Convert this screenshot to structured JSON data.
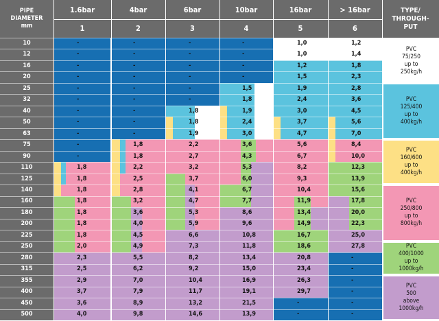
{
  "header": {
    "diameter": [
      "PIPE",
      "DIAMETER",
      "mm"
    ],
    "pressures": [
      "1.6bar",
      "4bar",
      "6bar",
      "10bar",
      "16bar",
      "> 16bar"
    ],
    "numbers": [
      "1",
      "2",
      "3",
      "4",
      "5",
      "6"
    ],
    "type": [
      "TYPE/",
      "THROUGH-",
      "PUT"
    ]
  },
  "diameters": [
    "10",
    "12",
    "16",
    "20",
    "25",
    "32",
    "40",
    "50",
    "63",
    "75",
    "90",
    "110",
    "125",
    "140",
    "160",
    "180",
    "200",
    "225",
    "250",
    "280",
    "315",
    "355",
    "400",
    "450",
    "500"
  ],
  "columns": [
    [
      "-",
      "-",
      "-",
      "-",
      "-",
      "-",
      "-",
      "-",
      "-",
      "-",
      "-",
      "1,8",
      "1,8",
      "1,8",
      "1,8",
      "1,8",
      "1,8",
      "1,8",
      "2,0",
      "2,3",
      "2,5",
      "2,9",
      "3,7",
      "3,6",
      "4,0"
    ],
    [
      "-",
      "-",
      "-",
      "-",
      "-",
      "-",
      "-",
      "-",
      "-",
      "1,8",
      "1,8",
      "2,2",
      "2,5",
      "2,8",
      "3,2",
      "3,6",
      "4,0",
      "4,5",
      "4,9",
      "5,5",
      "6,2",
      "7,0",
      "7,9",
      "8,9",
      "9,8"
    ],
    [
      "-",
      "-",
      "-",
      "-",
      "-",
      "-",
      "1,8",
      "1,8",
      "1,9",
      "2,2",
      "2,7",
      "3,2",
      "3,7",
      "4,1",
      "4,7",
      "5,3",
      "5,9",
      "6,6",
      "7,3",
      "8,2",
      "9,2",
      "10,4",
      "11,7",
      "13,2",
      "14,6"
    ],
    [
      "-",
      "-",
      "-",
      "-",
      "1,5",
      "1,8",
      "1,9",
      "2,4",
      "3,0",
      "3,6",
      "4,3",
      "5,3",
      "6,0",
      "6,7",
      "7,7",
      "8,6",
      "9,6",
      "10,8",
      "11,8",
      "13,4",
      "15,0",
      "16,9",
      "19,1",
      "21,5",
      "13,9"
    ],
    [
      "1,0",
      "1,0",
      "1,2",
      "1,5",
      "1,9",
      "2,4",
      "3,0",
      "3,7",
      "4,7",
      "5,6",
      "6,7",
      "8,2",
      "9,3",
      "10,4",
      "11,9",
      "13,4",
      "14,9",
      "16,7",
      "18,6",
      "20,8",
      "23,4",
      "26,3",
      "29,7",
      "-",
      "-"
    ],
    [
      "1,2",
      "1,4",
      "1,8",
      "2,3",
      "2,8",
      "3,6",
      "4,5",
      "5,6",
      "7,0",
      "8,4",
      "10,0",
      "12,3",
      "13,9",
      "15,6",
      "17,8",
      "20,0",
      "22,3",
      "25,0",
      "27,8",
      "-",
      "-",
      "-",
      "-",
      "-",
      "-"
    ]
  ],
  "types": [
    {
      "lines": [
        "PVC",
        "75/250",
        "up to",
        "250kg/h"
      ],
      "color": "#ffffff"
    },
    {
      "lines": [
        "PVC",
        "125/400",
        "up to",
        "400kg/h"
      ],
      "color": "#5bc3de"
    },
    {
      "lines": [
        "PVC",
        "160/600",
        "up to",
        "400kg/h"
      ],
      "color": "#fde085"
    },
    {
      "lines": [
        "PVC",
        "250/800",
        "up to",
        "800kg/h"
      ],
      "color": "#f397b4"
    },
    {
      "lines": [
        "PVC",
        "400/1000",
        "up to",
        "1000kg/h"
      ],
      "color": "#9fd47b"
    },
    {
      "lines": [
        "PVC",
        "500",
        "above",
        "1000kg/h"
      ],
      "color": "#c29ccc"
    }
  ],
  "colors": {
    "header": "#6b6b6b",
    "dark_blue": "#176fb2",
    "light_blue": "#5bc3de",
    "yellow": "#fde085",
    "pink": "#f397b4",
    "green": "#9fd47b",
    "purple": "#c29ccc",
    "white": "#ffffff"
  }
}
